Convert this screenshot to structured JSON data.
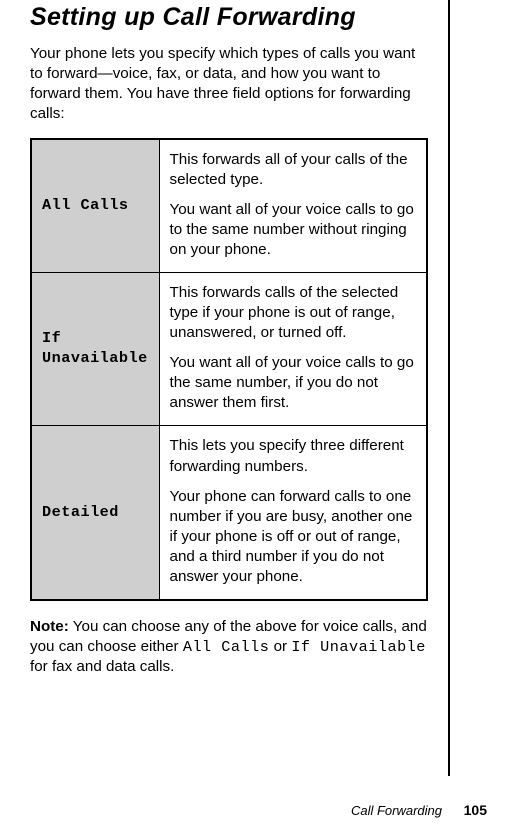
{
  "title": "Setting up Call Forwarding",
  "intro": "Your phone lets you specify which types of calls you want to forward—voice, fax, or data, and how you want to forward them. You have three field options for forwarding calls:",
  "table": {
    "rows": [
      {
        "label": "All Calls",
        "p1": "This forwards all of your calls of the selected type.",
        "p2": "You want all of your voice calls to go to the same number without ringing on your phone."
      },
      {
        "label": "If Unavailable",
        "p1": "This forwards calls of the selected type if your phone is out of range, unanswered, or turned off.",
        "p2": "You want all of your voice calls to go the same number, if you do not answer them first."
      },
      {
        "label": "Detailed",
        "p1": "This lets you specify three different forwarding numbers.",
        "p2": "Your phone can forward calls to one number if you are busy, another one if your phone is off or out of range, and a third number if you do not answer your phone."
      }
    ]
  },
  "note": {
    "prefix": "Note:",
    "before_mono1": " You can choose any of the above for voice calls, and you can choose either ",
    "mono1": "All Calls",
    "between": " or ",
    "mono2": "If Unavailable",
    "after": " for fax and data calls."
  },
  "footer": {
    "section": "Call Forwarding",
    "page": "105"
  }
}
